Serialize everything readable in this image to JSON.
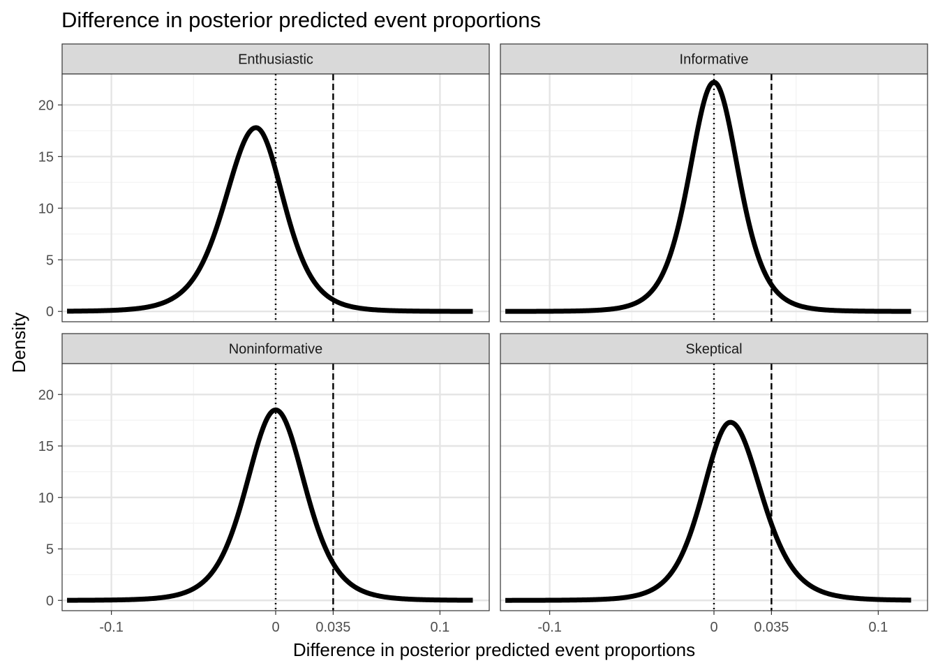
{
  "chart_data": {
    "type": "line",
    "title": "Difference in posterior predicted event proportions",
    "xlabel": "Difference in posterior predicted event proportions",
    "ylabel": "Density",
    "xlim": [
      -0.13,
      0.13
    ],
    "ylim": [
      -1,
      23
    ],
    "x_ticks": [
      -0.1,
      0,
      0.035,
      0.1
    ],
    "x_tick_labels": [
      "-0.1",
      "0",
      "0.035",
      "0.1"
    ],
    "y_ticks": [
      0,
      5,
      10,
      15,
      20
    ],
    "y_tick_labels": [
      "0",
      "5",
      "10",
      "15",
      "20"
    ],
    "x_minor_ticks": [
      -0.05,
      0.05
    ],
    "reference_lines": [
      {
        "x": 0,
        "style": "dotted"
      },
      {
        "x": 0.035,
        "style": "dashed"
      }
    ],
    "grid": true,
    "line_color": "#000000",
    "strip_color": "#d9d9d9",
    "facets": [
      {
        "label": "Enthusiastic",
        "peak_x": -0.012,
        "peak_y": 17.8,
        "sd_left": 0.0195,
        "sd_right": 0.0175
      },
      {
        "label": "Informative",
        "peak_x": 0.0,
        "peak_y": 22.2,
        "sd_left": 0.0155,
        "sd_right": 0.0155
      },
      {
        "label": "Noninformative",
        "peak_x": 0.0,
        "peak_y": 18.5,
        "sd_left": 0.0185,
        "sd_right": 0.0185
      },
      {
        "label": "Skeptical",
        "peak_x": 0.01,
        "peak_y": 17.3,
        "sd_left": 0.0175,
        "sd_right": 0.0195
      }
    ]
  }
}
